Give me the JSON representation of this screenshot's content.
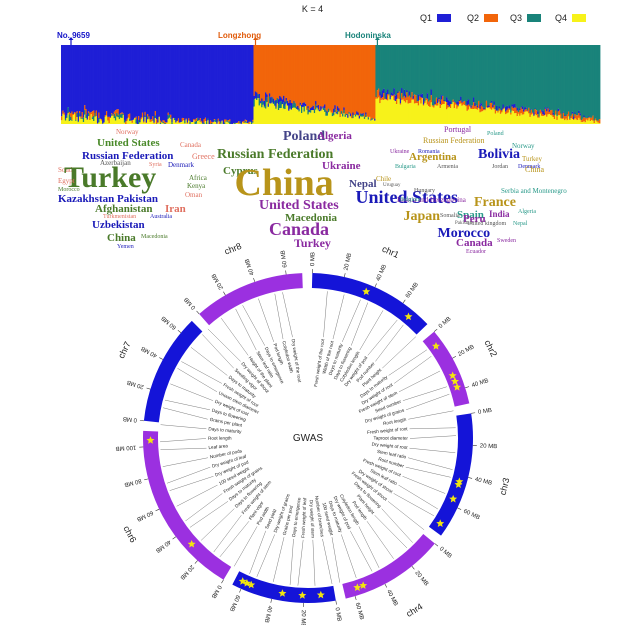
{
  "k_label": "K = 4",
  "colors": {
    "q1": "#1f1fd6",
    "q2": "#f2650a",
    "q3": "#19837a",
    "q4": "#f7f21a",
    "purple": "#9b30e0",
    "blue": "#1414d8",
    "star": "#f2e50f"
  },
  "chart_data": [
    {
      "type": "stacked-bar",
      "legend": [
        {
          "name": "Q1",
          "color": "#1f1fd6"
        },
        {
          "name": "Q2",
          "color": "#f2650a"
        },
        {
          "name": "Q3",
          "color": "#19837a"
        },
        {
          "name": "Q4",
          "color": "#f7f21a"
        }
      ],
      "legend_position": "top-right",
      "grid": false,
      "group_labels": [
        {
          "name": "No. 9659",
          "color": "#1414c8"
        },
        {
          "name": "Longzhong",
          "color": "#e05a0a"
        },
        {
          "name": "Hodoninska",
          "color": "#19837a"
        }
      ],
      "groups": [
        {
          "dominant": "Q1",
          "n": 150,
          "start": [
            0.86,
            0.04,
            0.02,
            0.08
          ],
          "end": [
            1.0,
            0.0,
            0.0,
            0.0
          ]
        },
        {
          "dominant": "Q2",
          "n": 95,
          "start": [
            0.05,
            0.62,
            0.06,
            0.27
          ],
          "end": [
            0.0,
            0.94,
            0.0,
            0.06
          ]
        },
        {
          "dominant": "Q3",
          "n": 175,
          "start": [
            0.03,
            0.06,
            0.58,
            0.33
          ],
          "end": [
            0.0,
            0.04,
            0.93,
            0.03
          ]
        }
      ]
    },
    {
      "type": "circos",
      "center_label": "GWAS",
      "chromosomes": [
        {
          "name": "chr1",
          "length_mb": 80,
          "color": "blue",
          "ticks": [
            0,
            20,
            40,
            60
          ],
          "stars_mb": [
            36,
            68
          ]
        },
        {
          "name": "chr2",
          "length_mb": 50,
          "color": "purple",
          "ticks": [
            0,
            20,
            40
          ],
          "stars_mb": [
            8,
            30,
            34,
            38
          ]
        },
        {
          "name": "chr3",
          "length_mb": 80,
          "color": "blue",
          "ticks": [
            0,
            20,
            40,
            60
          ],
          "stars_mb": [
            44,
            46,
            56,
            74
          ]
        },
        {
          "name": "chr4",
          "length_mb": 66,
          "color": "purple",
          "ticks": [
            0,
            20,
            40,
            60
          ],
          "stars_mb": [
            53,
            57
          ]
        },
        {
          "name": "chr5",
          "length_mb": 66,
          "color": "blue",
          "ticks": [
            0,
            20,
            40,
            60
          ],
          "stars_mb": [
            9,
            21,
            34,
            55,
            58,
            61
          ]
        },
        {
          "name": "chr6",
          "length_mb": 110,
          "color": "purple",
          "ticks": [
            0,
            20,
            40,
            60,
            80,
            100
          ],
          "stars_mb": [
            30,
            104
          ]
        },
        {
          "name": "chr7",
          "length_mb": 70,
          "color": "blue",
          "ticks": [
            0,
            20,
            40,
            60
          ],
          "stars_mb": []
        },
        {
          "name": "chr8",
          "length_mb": 70,
          "color": "purple",
          "ticks": [
            0,
            20,
            40,
            60
          ],
          "stars_mb": []
        }
      ],
      "tick_unit": "MB",
      "trait_labels": [
        "Fresh weight of the root",
        "Width of the root",
        "Days to maturity",
        "Days to flowering",
        "Cotyledon length",
        "Dry weight of pod",
        "Pod number",
        "Plant height",
        "Days to maturity",
        "Dry weight of root",
        "Fresh weight of stem",
        "Seed number",
        "Dry weight of grains",
        "Root length",
        "Fresh weight of root",
        "Taproot diameter",
        "Dry weight of root",
        "Stem leaf ratio",
        "Root number",
        "Fresh weight of root",
        "Stem leaf ratio",
        "Dry weight of shoot",
        "Fresh weight of shoot",
        "Days to flowering",
        "Plant height",
        "Pod length",
        "Cotyledon length",
        "Dry weight of pod",
        "Days to maturity",
        "100 seed weight",
        "Number of branches",
        "Dry weight of stem",
        "Fresh weight of leaf",
        "Days to emergence",
        "Grains per pod",
        "Dry weight of grains",
        "Seed yield",
        "Pod width",
        "Plant vigor",
        "Fresh weight of stem",
        "Days to flowering",
        "Days to maturity",
        "Fresh weight of grains",
        "100 seed weight",
        "Dry weight of pod",
        "Dry weight of leaf",
        "Number of pods",
        "Leaf area",
        "Root length",
        "Days to maturity",
        "Grains per plant",
        "Days to flowering",
        "Dry weight of root",
        "Unown stem diameter",
        "Fresh weight of root",
        "Days to maturity",
        "Seedling vigor",
        "Dry weight of shoot",
        "Height of the plant",
        "Stem leaf ratio",
        "Days to emergence",
        "Pod length",
        "Cotyledon width",
        "Dry weight of the root"
      ]
    }
  ],
  "wordclouds": [
    {
      "name": "Q1",
      "words": [
        {
          "text": "Norway",
          "size": 7,
          "color": "#e07060"
        },
        {
          "text": "United States",
          "size": 11,
          "color": "#4a8a2a"
        },
        {
          "text": "Canada",
          "size": 7,
          "color": "#e07060"
        },
        {
          "text": "Russian Federation",
          "size": 11,
          "color": "#1a1ab8"
        },
        {
          "text": "Greece",
          "size": 8,
          "color": "#e07060"
        },
        {
          "text": "Azerbaijan",
          "size": 7,
          "color": "#555"
        },
        {
          "text": "Syria",
          "size": 6,
          "color": "#e07060"
        },
        {
          "text": "Denmark",
          "size": 7,
          "color": "#1a1ab8"
        },
        {
          "text": "South",
          "size": 7,
          "color": "#e07060"
        },
        {
          "text": "Turkey",
          "size": 30,
          "color": "#4a7a2a"
        },
        {
          "text": "Egypt",
          "size": 7,
          "color": "#e07060"
        },
        {
          "text": "Africa",
          "size": 7,
          "color": "#4a7a2a"
        },
        {
          "text": "Morocco",
          "size": 6,
          "color": "#4a7a2a"
        },
        {
          "text": "Kenya",
          "size": 7,
          "color": "#4a7a2a"
        },
        {
          "text": "Oman",
          "size": 7,
          "color": "#e07060"
        },
        {
          "text": "Kazakhstan Pakistan",
          "size": 11,
          "color": "#1a1ab8"
        },
        {
          "text": "Afghanistan",
          "size": 11,
          "color": "#4a7a2a"
        },
        {
          "text": "Iran",
          "size": 11,
          "color": "#e07060"
        },
        {
          "text": "Turkmenistan",
          "size": 6,
          "color": "#e07060"
        },
        {
          "text": "Australia",
          "size": 6,
          "color": "#1a1ab8"
        },
        {
          "text": "Uzbekistan",
          "size": 11,
          "color": "#1a1ab8"
        },
        {
          "text": "China",
          "size": 11,
          "color": "#4a7a2a"
        },
        {
          "text": "Macedonia",
          "size": 6,
          "color": "#4a7a2a"
        },
        {
          "text": "Yemen",
          "size": 6,
          "color": "#1a1ab8"
        }
      ]
    },
    {
      "name": "Q2",
      "words": [
        {
          "text": "Poland",
          "size": 14,
          "color": "#444488"
        },
        {
          "text": "Algeria",
          "size": 11,
          "color": "#8a2aa0"
        },
        {
          "text": "Russian Federation",
          "size": 14,
          "color": "#4a7a2a"
        },
        {
          "text": "Ukraine",
          "size": 11,
          "color": "#8a2aa0"
        },
        {
          "text": "Cyprus",
          "size": 11,
          "color": "#4a7a2a"
        },
        {
          "text": "China",
          "size": 38,
          "color": "#b8941a"
        },
        {
          "text": "Nepal",
          "size": 11,
          "color": "#444488"
        },
        {
          "text": "United States",
          "size": 14,
          "color": "#8a2aa0"
        },
        {
          "text": "Macedonia",
          "size": 11,
          "color": "#4a7a2a"
        },
        {
          "text": "Canada",
          "size": 18,
          "color": "#8a2aa0"
        },
        {
          "text": "Turkey",
          "size": 12,
          "color": "#8a2aa0"
        }
      ]
    },
    {
      "name": "Q3",
      "words": [
        {
          "text": "Portugal",
          "size": 8,
          "color": "#8a2aa0"
        },
        {
          "text": "Poland",
          "size": 6,
          "color": "#2a9a8a"
        },
        {
          "text": "Russian Federation",
          "size": 8,
          "color": "#b8941a"
        },
        {
          "text": "Norway",
          "size": 7,
          "color": "#2a9a8a"
        },
        {
          "text": "Ukraine",
          "size": 6,
          "color": "#8a2aa0"
        },
        {
          "text": "Romania",
          "size": 6,
          "color": "#1a1ab8"
        },
        {
          "text": "Argentina",
          "size": 11,
          "color": "#b8941a"
        },
        {
          "text": "Bolivia",
          "size": 14,
          "color": "#1a1ab8"
        },
        {
          "text": "Turkey",
          "size": 7,
          "color": "#b8941a"
        },
        {
          "text": "Bulgaria",
          "size": 6,
          "color": "#2a9a8a"
        },
        {
          "text": "Armenia",
          "size": 6,
          "color": "#555"
        },
        {
          "text": "Jordan",
          "size": 6,
          "color": "#555"
        },
        {
          "text": "Denmark",
          "size": 6,
          "color": "#1a1ab8"
        },
        {
          "text": "Chile",
          "size": 7,
          "color": "#b8941a"
        },
        {
          "text": "China",
          "size": 8,
          "color": "#b8941a"
        },
        {
          "text": "Uruguay",
          "size": 5,
          "color": "#555"
        },
        {
          "text": "United States",
          "size": 18,
          "color": "#1a1ab8"
        },
        {
          "text": "Hungary",
          "size": 6,
          "color": "#555"
        },
        {
          "text": "Serbia and Montenegro",
          "size": 7,
          "color": "#2a9a8a"
        },
        {
          "text": "Bosnia and Herzegovina",
          "size": 7,
          "color": "#8a2aa0"
        },
        {
          "text": "Belgium",
          "size": 6,
          "color": "#2a9a8a"
        },
        {
          "text": "France",
          "size": 14,
          "color": "#b8941a"
        },
        {
          "text": "Japan",
          "size": 14,
          "color": "#b8941a"
        },
        {
          "text": "Spain",
          "size": 11,
          "color": "#2a9a8a"
        },
        {
          "text": "Somalia",
          "size": 6,
          "color": "#555"
        },
        {
          "text": "Peru",
          "size": 11,
          "color": "#8a2aa0"
        },
        {
          "text": "India",
          "size": 9,
          "color": "#8a2aa0"
        },
        {
          "text": "Algeria",
          "size": 6,
          "color": "#2a9a8a"
        },
        {
          "text": "Pakistan",
          "size": 5,
          "color": "#555"
        },
        {
          "text": "United kingdom",
          "size": 6,
          "color": "#555"
        },
        {
          "text": "Nepal",
          "size": 6,
          "color": "#2a9a8a"
        },
        {
          "text": "Morocco",
          "size": 14,
          "color": "#1a1ab8"
        },
        {
          "text": "Canada",
          "size": 11,
          "color": "#8a2aa0"
        },
        {
          "text": "Sweden",
          "size": 6,
          "color": "#8a2aa0"
        },
        {
          "text": "Ecuador",
          "size": 6,
          "color": "#8a2aa0"
        }
      ]
    }
  ]
}
